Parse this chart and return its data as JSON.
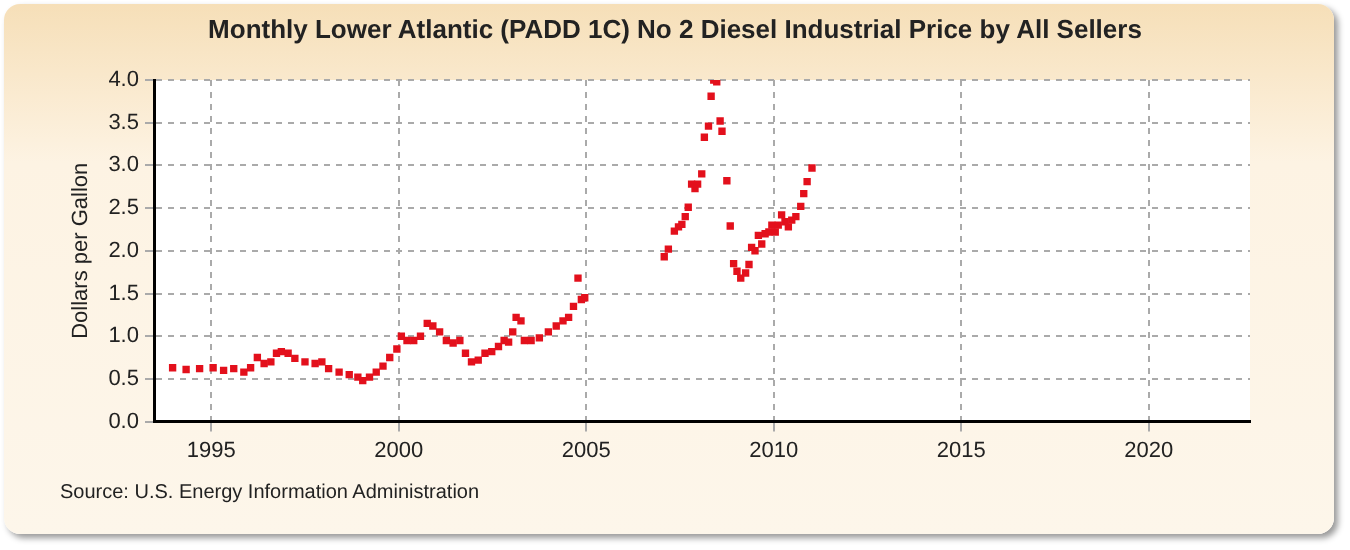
{
  "chart_data": {
    "type": "scatter",
    "title": "Monthly Lower Atlantic (PADD 1C) No 2 Diesel Industrial Price by All Sellers",
    "ylabel": "Dollars per Gallon",
    "annotations": [
      "Source: U.S. Energy Information Administration"
    ],
    "x": [
      1993.97,
      1994.33,
      1994.69,
      1995.05,
      1995.33,
      1995.6,
      1995.87,
      1996.05,
      1996.23,
      1996.41,
      1996.59,
      1996.74,
      1996.87,
      1997.05,
      1997.23,
      1997.5,
      1997.77,
      1997.95,
      1998.13,
      1998.41,
      1998.68,
      1998.91,
      1999.04,
      1999.22,
      1999.4,
      1999.58,
      1999.76,
      1999.95,
      2000.07,
      2000.22,
      2000.4,
      2000.58,
      2000.76,
      2000.91,
      2001.09,
      2001.27,
      2001.45,
      2001.63,
      2001.78,
      2001.94,
      2002.12,
      2002.3,
      2002.48,
      2002.66,
      2002.81,
      2002.93,
      2003.04,
      2003.13,
      2003.26,
      2003.35,
      2003.53,
      2003.75,
      2003.99,
      2004.2,
      2004.38,
      2004.53,
      2004.66,
      2004.78,
      2004.87,
      2004.96,
      2007.08,
      2007.19,
      2007.35,
      2007.46,
      2007.55,
      2007.64,
      2007.72,
      2007.81,
      2007.9,
      2007.97,
      2008.08,
      2008.15,
      2008.26,
      2008.33,
      2008.4,
      2008.48,
      2008.57,
      2008.62,
      2008.75,
      2008.84,
      2008.93,
      2009.02,
      2009.12,
      2009.25,
      2009.34,
      2009.41,
      2009.5,
      2009.59,
      2009.68,
      2009.77,
      2009.87,
      2009.95,
      2010.04,
      2010.12,
      2010.21,
      2010.3,
      2010.39,
      2010.48,
      2010.59,
      2010.72,
      2010.8,
      2010.89,
      2011.02
    ],
    "series": [
      {
        "color": "#e3101c",
        "values": [
          0.63,
          0.61,
          0.62,
          0.63,
          0.6,
          0.62,
          0.58,
          0.63,
          0.75,
          0.68,
          0.7,
          0.8,
          0.82,
          0.8,
          0.74,
          0.7,
          0.68,
          0.7,
          0.62,
          0.58,
          0.55,
          0.52,
          0.48,
          0.52,
          0.58,
          0.65,
          0.75,
          0.85,
          1.0,
          0.95,
          0.95,
          1.0,
          1.15,
          1.12,
          1.05,
          0.95,
          0.92,
          0.95,
          0.8,
          0.7,
          0.72,
          0.8,
          0.82,
          0.88,
          0.95,
          0.93,
          1.05,
          1.22,
          1.18,
          0.95,
          0.95,
          0.98,
          1.05,
          1.12,
          1.18,
          1.22,
          1.35,
          1.68,
          1.43,
          1.45,
          1.93,
          2.02,
          2.23,
          2.28,
          2.31,
          2.4,
          2.51,
          2.78,
          2.73,
          2.78,
          2.9,
          3.33,
          3.46,
          3.81,
          4.0,
          3.98,
          3.52,
          3.4,
          2.82,
          2.29,
          1.85,
          1.76,
          1.68,
          1.74,
          1.84,
          2.04,
          2.0,
          2.18,
          2.08,
          2.2,
          2.22,
          2.3,
          2.22,
          2.3,
          2.42,
          2.34,
          2.28,
          2.36,
          2.4,
          2.52,
          2.67,
          2.81,
          2.97
        ]
      }
    ],
    "xlim": [
      1993.5,
      2022.7
    ],
    "xticks": [
      1995,
      2000,
      2005,
      2010,
      2015,
      2020
    ],
    "ylim": [
      0,
      4
    ],
    "yticks": [
      {
        "value": 0,
        "label": "0.0"
      },
      {
        "value": 0.5,
        "label": "0.5"
      },
      {
        "value": 1,
        "label": "1.0"
      },
      {
        "value": 1.5,
        "label": "1.5"
      },
      {
        "value": 2,
        "label": "2.0"
      },
      {
        "value": 2.5,
        "label": "2.5"
      },
      {
        "value": 3,
        "label": "3.0"
      },
      {
        "value": 3.5,
        "label": "3.5"
      },
      {
        "value": 4,
        "label": "4.0"
      }
    ],
    "grid": true,
    "marker": "square"
  }
}
